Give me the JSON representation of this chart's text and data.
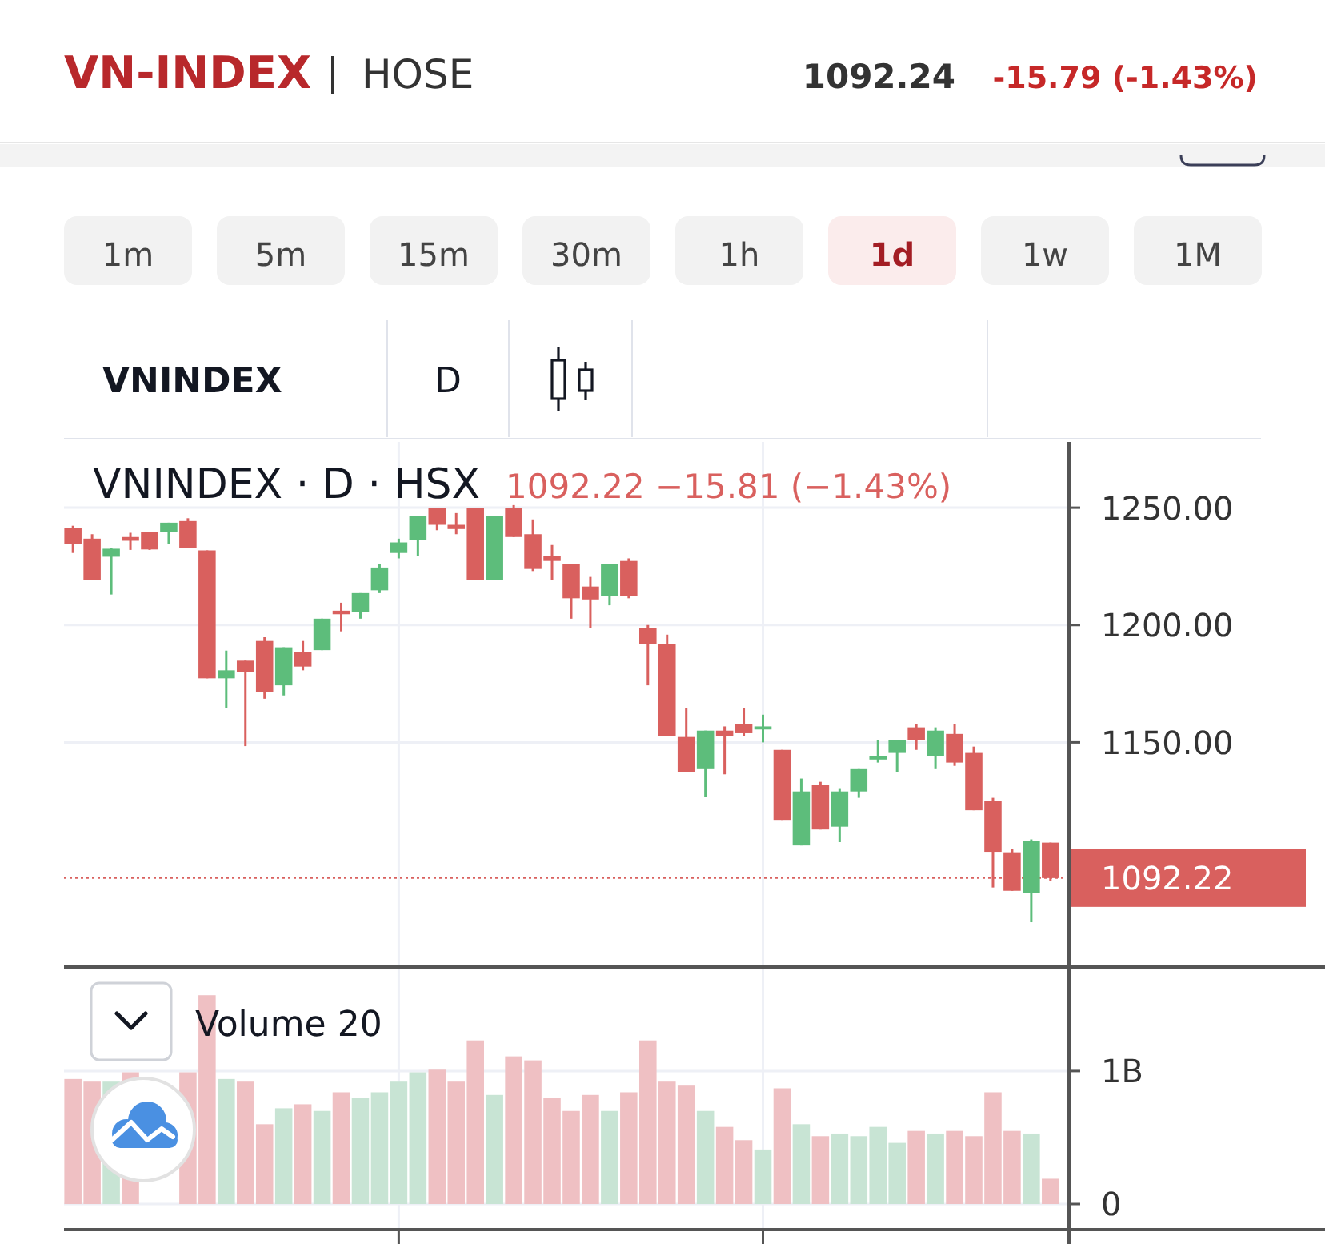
{
  "chart_data": [
    {
      "type": "candlestick",
      "title": "VN-INDEX",
      "subtitle": "HOSE",
      "annotations": [
        "1092.24",
        "-15.79 (-1.43%)",
        "1m",
        "5m",
        "15m",
        "30m",
        "1h",
        "1d",
        "1w",
        "1M",
        "VNINDEX",
        "D",
        "VNINDEX · D · HSX",
        "1092.22 −15.81 (−1.43%)"
      ],
      "categories": [
        null,
        null,
        null,
        null,
        null,
        null,
        null,
        null,
        null,
        null,
        null,
        null,
        null,
        null,
        null,
        null,
        null,
        null,
        null,
        null,
        null,
        null,
        null,
        null,
        null,
        null,
        null,
        null,
        null,
        null,
        null,
        null,
        null,
        null,
        null,
        null,
        null,
        null,
        null,
        null,
        null,
        null,
        null,
        null,
        null,
        null,
        null,
        null,
        null,
        null,
        null,
        null
      ],
      "ohlc": [
        [
          1241.4,
          1242.3,
          1230.7,
          1234.6
        ],
        [
          1236.8,
          1238.7,
          1219.3,
          1219.3
        ],
        [
          1229.1,
          1232.9,
          1213.0,
          1232.5
        ],
        [
          1237.5,
          1239.3,
          1232.0,
          1235.9
        ],
        [
          1239.5,
          1239.5,
          1232.0,
          1232.2
        ],
        [
          1239.7,
          1243.6,
          1234.6,
          1243.6
        ],
        [
          1244.3,
          1245.5,
          1232.9,
          1232.9
        ],
        [
          1231.8,
          1231.8,
          1177.3,
          1177.3
        ],
        [
          1177.3,
          1189.1,
          1164.8,
          1180.7
        ],
        [
          1184.8,
          1184.8,
          1148.4,
          1180.0
        ],
        [
          1193.2,
          1194.8,
          1168.6,
          1171.6
        ],
        [
          1174.3,
          1190.5,
          1170.0,
          1190.5
        ],
        [
          1188.6,
          1193.2,
          1180.7,
          1182.3
        ],
        [
          1189.3,
          1202.7,
          1189.3,
          1202.7
        ],
        [
          1206.1,
          1209.5,
          1197.3,
          1204.6
        ],
        [
          1205.7,
          1213.6,
          1202.7,
          1213.6
        ],
        [
          1214.8,
          1226.1,
          1213.6,
          1224.5
        ],
        [
          1230.7,
          1236.8,
          1228.4,
          1235.2
        ],
        [
          1236.3,
          1246.6,
          1229.5,
          1246.6
        ],
        [
          1250.0,
          1250.0,
          1240.4,
          1242.7
        ],
        [
          1242.7,
          1247.7,
          1238.7,
          1240.9
        ],
        [
          1250.0,
          1250.0,
          1219.3,
          1219.3
        ],
        [
          1219.3,
          1246.6,
          1219.3,
          1246.6
        ],
        [
          1250.0,
          1251.1,
          1237.5,
          1237.5
        ],
        [
          1238.7,
          1245.0,
          1223.0,
          1223.9
        ],
        [
          1229.5,
          1234.1,
          1219.3,
          1227.3
        ],
        [
          1226.1,
          1226.1,
          1202.7,
          1211.4
        ],
        [
          1216.4,
          1220.5,
          1198.8,
          1210.9
        ],
        [
          1212.5,
          1226.1,
          1208.4,
          1226.1
        ],
        [
          1227.3,
          1228.4,
          1211.4,
          1212.5
        ],
        [
          1198.8,
          1200.0,
          1174.3,
          1192.0
        ],
        [
          1192.0,
          1195.9,
          1152.8,
          1152.8
        ],
        [
          1152.3,
          1164.8,
          1137.5,
          1137.5
        ],
        [
          1138.6,
          1155.0,
          1126.9,
          1155.0
        ],
        [
          1155.0,
          1156.8,
          1136.4,
          1152.8
        ],
        [
          1157.7,
          1164.6,
          1152.8,
          1153.9
        ],
        [
          1155.5,
          1161.8,
          1150.0,
          1156.8
        ],
        [
          1146.8,
          1146.8,
          1117.0,
          1117.0
        ],
        [
          1106.1,
          1134.6,
          1106.1,
          1129.1
        ],
        [
          1131.8,
          1133.2,
          1112.9,
          1112.9
        ],
        [
          1114.1,
          1130.5,
          1107.5,
          1129.1
        ],
        [
          1129.1,
          1138.6,
          1126.4,
          1138.6
        ],
        [
          1142.7,
          1150.9,
          1141.4,
          1144.1
        ],
        [
          1145.5,
          1150.9,
          1137.3,
          1150.9
        ],
        [
          1156.4,
          1157.7,
          1146.8,
          1150.9
        ],
        [
          1144.1,
          1156.4,
          1138.6,
          1155.0
        ],
        [
          1153.6,
          1157.7,
          1140.0,
          1141.4
        ],
        [
          1145.5,
          1148.2,
          1121.1,
          1121.1
        ],
        [
          1125.0,
          1126.4,
          1088.2,
          1103.4
        ],
        [
          1103.2,
          1104.6,
          1086.8,
          1086.8
        ],
        [
          1085.7,
          1108.7,
          1073.4,
          1108.0
        ],
        [
          1107.3,
          1107.3,
          1090.9,
          1092.22
        ]
      ],
      "colors": [
        "#d9605e",
        "#d9605e",
        "#5dbd7b",
        "#d9605e",
        "#d9605e",
        "#5dbd7b",
        "#d9605e",
        "#d9605e",
        "#5dbd7b",
        "#d9605e",
        "#d9605e",
        "#5dbd7b",
        "#d9605e",
        "#5dbd7b",
        "#d9605e",
        "#5dbd7b",
        "#5dbd7b",
        "#5dbd7b",
        "#5dbd7b",
        "#d9605e",
        "#d9605e",
        "#d9605e",
        "#5dbd7b",
        "#d9605e",
        "#d9605e",
        "#d9605e",
        "#d9605e",
        "#d9605e",
        "#5dbd7b",
        "#d9605e",
        "#d9605e",
        "#d9605e",
        "#d9605e",
        "#5dbd7b",
        "#d9605e",
        "#d9605e",
        "#5dbd7b",
        "#d9605e",
        "#5dbd7b",
        "#d9605e",
        "#5dbd7b",
        "#5dbd7b",
        "#5dbd7b",
        "#5dbd7b",
        "#d9605e",
        "#5dbd7b",
        "#d9605e",
        "#d9605e",
        "#d9605e",
        "#d9605e",
        "#5dbd7b",
        "#d9605e"
      ],
      "ylim": [
        1055,
        1278
      ],
      "yticks": [
        {
          "value": 1150,
          "label": "1150.00"
        },
        {
          "value": 1200,
          "label": "1200.00"
        },
        {
          "value": 1250,
          "label": "1250.00"
        }
      ],
      "grid": true,
      "tick_labels": "y",
      "ref_lines": [
        {
          "axis": "y",
          "value": 1092.22,
          "label": "1092.22",
          "color": "#d9605e",
          "line_style": "dotted"
        }
      ]
    },
    {
      "type": "bar",
      "title": "Volume 20",
      "categories": [
        null,
        null,
        null,
        null,
        null,
        null,
        null,
        null,
        null,
        null,
        null,
        null,
        null,
        null,
        null,
        null,
        null,
        null,
        null,
        null,
        null,
        null,
        null,
        null,
        null,
        null,
        null,
        null,
        null,
        null,
        null,
        null,
        null,
        null,
        null,
        null,
        null,
        null,
        null,
        null,
        null,
        null,
        null,
        null,
        null,
        null,
        null,
        null,
        null,
        null,
        null,
        null
      ],
      "values": [
        0.94,
        0.92,
        0.92,
        0.99,
        null,
        null,
        0.99,
        1.57,
        0.94,
        0.92,
        0.6,
        0.72,
        0.75,
        0.7,
        0.84,
        0.8,
        0.84,
        0.92,
        0.99,
        1.01,
        0.92,
        1.23,
        0.82,
        1.11,
        1.08,
        0.8,
        0.7,
        0.82,
        0.7,
        0.84,
        1.23,
        0.92,
        0.89,
        0.7,
        0.58,
        0.48,
        0.41,
        0.87,
        0.6,
        0.51,
        0.53,
        0.51,
        0.58,
        0.46,
        0.55,
        0.53,
        0.55,
        0.51,
        0.84,
        0.55,
        0.53,
        0.19
      ],
      "colors": [
        "#efc0c3",
        "#efc0c3",
        "#c8e4d4",
        "#efc0c3",
        null,
        null,
        "#efc0c3",
        "#efc0c3",
        "#c8e4d4",
        "#efc0c3",
        "#efc0c3",
        "#c8e4d4",
        "#efc0c3",
        "#c8e4d4",
        "#efc0c3",
        "#c8e4d4",
        "#c8e4d4",
        "#c8e4d4",
        "#c8e4d4",
        "#efc0c3",
        "#efc0c3",
        "#efc0c3",
        "#c8e4d4",
        "#efc0c3",
        "#efc0c3",
        "#efc0c3",
        "#efc0c3",
        "#efc0c3",
        "#c8e4d4",
        "#efc0c3",
        "#efc0c3",
        "#efc0c3",
        "#efc0c3",
        "#c8e4d4",
        "#efc0c3",
        "#efc0c3",
        "#c8e4d4",
        "#efc0c3",
        "#c8e4d4",
        "#efc0c3",
        "#c8e4d4",
        "#c8e4d4",
        "#c8e4d4",
        "#c8e4d4",
        "#efc0c3",
        "#c8e4d4",
        "#efc0c3",
        "#efc0c3",
        "#efc0c3",
        "#efc0c3",
        "#c8e4d4",
        "#efc0c3"
      ],
      "ylim": [
        0,
        1.77
      ],
      "yticks": [
        0,
        {
          "value": 1,
          "label": "1B"
        }
      ],
      "grid": true,
      "tick_labels": "y"
    }
  ]
}
